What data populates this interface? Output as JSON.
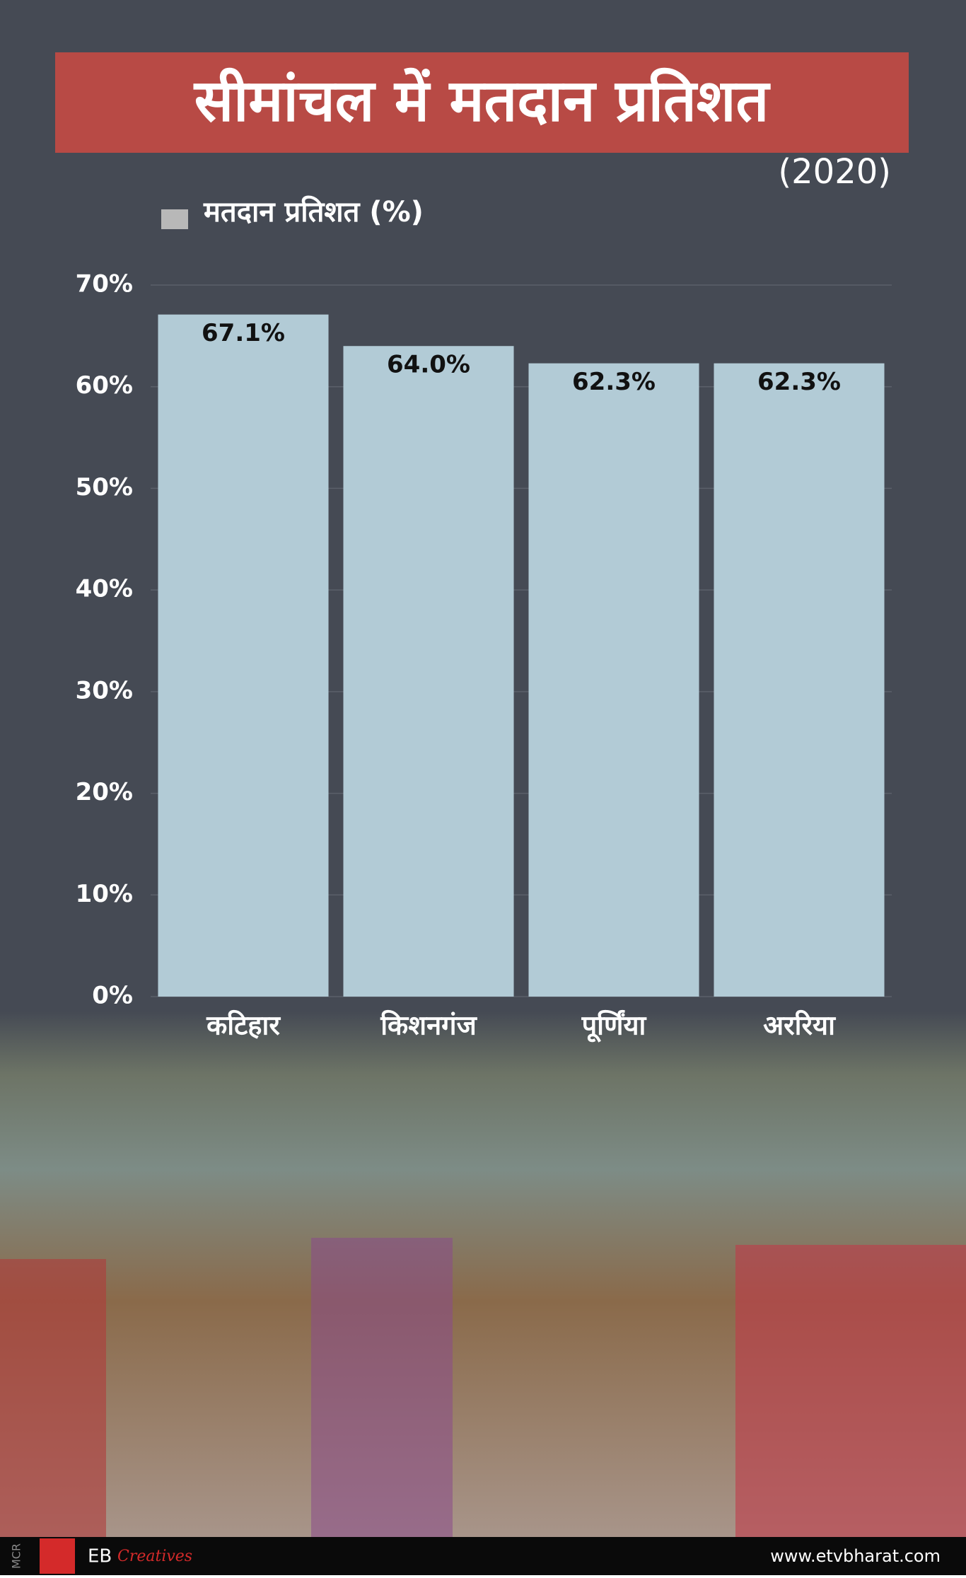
{
  "chart_data": {
    "type": "bar",
    "title": "सीमांचल में मतदान प्रतिशत",
    "subtitle": "(2020)",
    "categories": [
      "कटिहार",
      "किशनगंज",
      "पूर्णिंया",
      "अररिया"
    ],
    "series": [
      {
        "name": "मतदान प्रतिशत (%)",
        "color": "#b2cbd6",
        "values": [
          67.1,
          64.0,
          62.3,
          62.3
        ],
        "value_labels": [
          "67.1%",
          "64.0%",
          "62.3%",
          "62.3%"
        ]
      }
    ],
    "ylim": [
      0,
      70
    ],
    "yticks": [
      {
        "value": 0,
        "label": "0%"
      },
      {
        "value": 10,
        "label": "10%"
      },
      {
        "value": 20,
        "label": "20%"
      },
      {
        "value": 30,
        "label": "30%"
      },
      {
        "value": 40,
        "label": "40%"
      },
      {
        "value": 50,
        "label": "50%"
      },
      {
        "value": 60,
        "label": "60%"
      },
      {
        "value": 70,
        "label": "70%"
      }
    ],
    "grid": true,
    "legend": "top-left"
  },
  "footer": {
    "side_text": "MCR",
    "brand": "EB",
    "brand_script": "Creatives",
    "website": "www.etvbharat.com"
  }
}
